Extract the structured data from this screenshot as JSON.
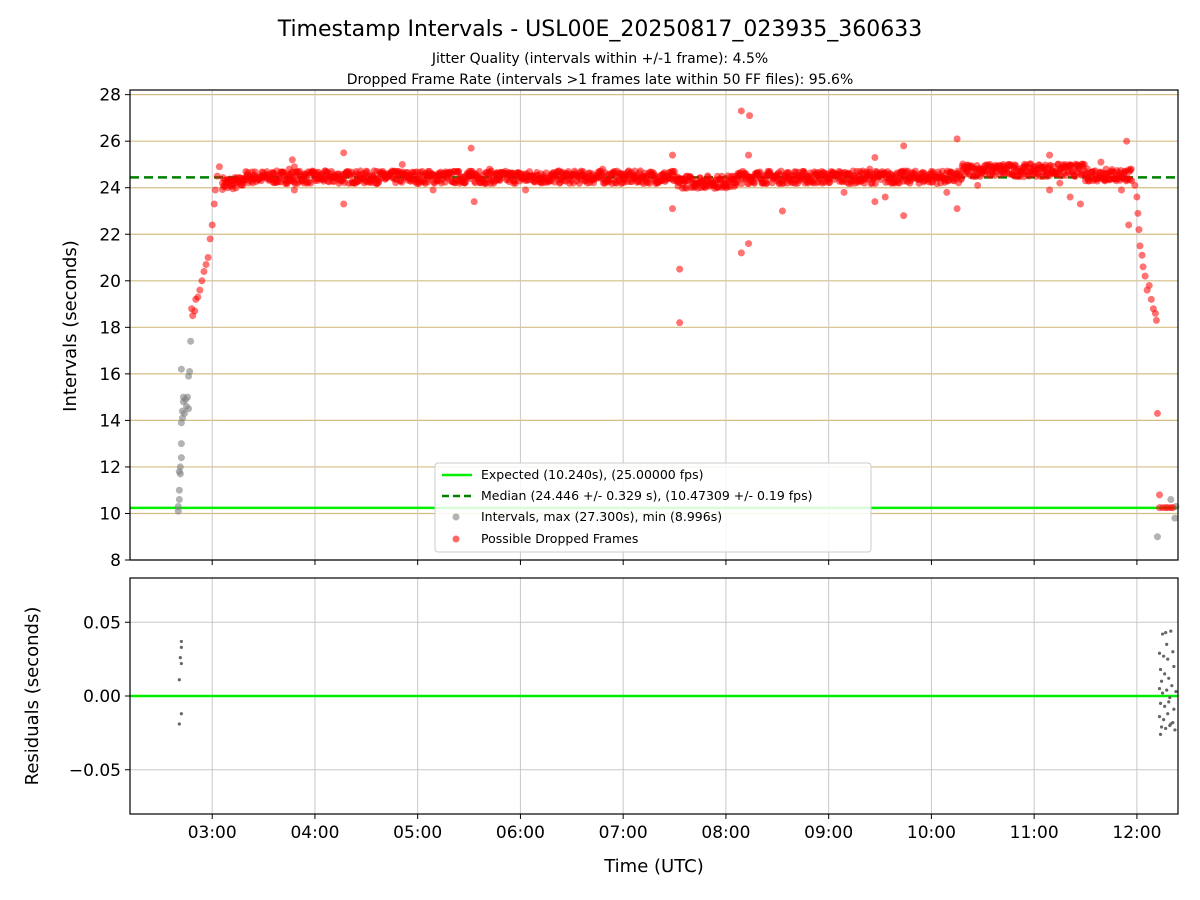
{
  "title": "Timestamp Intervals - USL00E_20250817_023935_360633",
  "subtitle1": "Jitter Quality (intervals within +/-1 frame): 4.5%",
  "subtitle2": "Dropped Frame Rate (intervals >1 frames late within 50 FF files): 95.6%",
  "colors": {
    "expected": "#00ee00",
    "median": "#008000",
    "intervals": "#808080",
    "dropped": "#ff0000",
    "hgrid_top": "#d4bd84",
    "grid": "#c8c8c8"
  },
  "chart_data": [
    {
      "type": "scatter",
      "ylabel": "Intervals (seconds)",
      "ylim": [
        8,
        28.2
      ],
      "yticks": [
        "8",
        "10",
        "12",
        "14",
        "16",
        "18",
        "20",
        "22",
        "24",
        "26",
        "28"
      ],
      "xlim_hours": [
        2.2,
        12.4
      ],
      "expected_value": 10.24,
      "median_value": 24.446,
      "grid": true,
      "legend_position": "lower-center",
      "legend": [
        "Expected (10.240s), (25.00000 fps)",
        "Median (24.446 +/- 0.329 s), (10.47309 +/- 0.19 fps)",
        "Intervals, max (27.300s), min (8.996s)",
        "Possible Dropped Frames"
      ],
      "series": [
        {
          "name": "Intervals, max (27.300s), min (8.996s)",
          "points": [
            [
              2.67,
              10.1
            ],
            [
              2.67,
              10.3
            ],
            [
              2.68,
              10.6
            ],
            [
              2.68,
              11.0
            ],
            [
              2.69,
              11.7
            ],
            [
              2.69,
              12.0
            ],
            [
              2.7,
              12.4
            ],
            [
              2.7,
              13.0
            ],
            [
              2.7,
              13.9
            ],
            [
              2.71,
              14.1
            ],
            [
              2.71,
              14.4
            ],
            [
              2.72,
              14.8
            ],
            [
              2.72,
              15.0
            ],
            [
              2.73,
              14.3
            ],
            [
              2.74,
              14.9
            ],
            [
              2.75,
              14.6
            ],
            [
              2.76,
              15.0
            ],
            [
              2.77,
              14.5
            ],
            [
              2.77,
              15.9
            ],
            [
              2.78,
              16.1
            ],
            [
              2.79,
              17.4
            ],
            [
              2.7,
              16.2
            ],
            [
              2.68,
              11.8
            ],
            [
              12.2,
              9.0
            ],
            [
              12.33,
              10.6
            ],
            [
              12.37,
              9.8
            ],
            [
              12.38,
              10.3
            ]
          ]
        },
        {
          "name": "Possible Dropped Frames",
          "points": [
            [
              2.8,
              18.8
            ],
            [
              2.81,
              18.5
            ],
            [
              2.83,
              18.7
            ],
            [
              2.84,
              19.2
            ],
            [
              2.86,
              19.3
            ],
            [
              2.88,
              19.6
            ],
            [
              2.9,
              20.0
            ],
            [
              2.92,
              20.4
            ],
            [
              2.94,
              20.7
            ],
            [
              2.96,
              21.0
            ],
            [
              2.98,
              21.8
            ],
            [
              3.0,
              22.4
            ],
            [
              3.02,
              23.3
            ],
            [
              3.03,
              23.9
            ],
            [
              3.05,
              24.5
            ],
            [
              3.07,
              24.9
            ],
            [
              3.1,
              24.2
            ],
            [
              3.15,
              24.0
            ],
            [
              3.2,
              24.1
            ],
            [
              3.3,
              24.3
            ],
            [
              3.4,
              24.5
            ],
            [
              3.5,
              24.5
            ],
            [
              3.6,
              24.6
            ],
            [
              3.7,
              24.5
            ],
            [
              3.75,
              24.8
            ],
            [
              3.8,
              24.9
            ],
            [
              3.78,
              25.2
            ],
            [
              3.8,
              23.9
            ],
            [
              3.9,
              24.4
            ],
            [
              4.0,
              24.6
            ],
            [
              4.1,
              24.4
            ],
            [
              4.2,
              24.5
            ],
            [
              4.28,
              25.5
            ],
            [
              4.28,
              23.3
            ],
            [
              4.4,
              24.6
            ],
            [
              4.5,
              24.5
            ],
            [
              4.6,
              24.7
            ],
            [
              4.7,
              24.6
            ],
            [
              4.8,
              24.7
            ],
            [
              4.85,
              25.0
            ],
            [
              4.9,
              24.5
            ],
            [
              5.0,
              24.4
            ],
            [
              5.1,
              24.7
            ],
            [
              5.15,
              23.9
            ],
            [
              5.2,
              24.6
            ],
            [
              5.3,
              24.5
            ],
            [
              5.4,
              24.7
            ],
            [
              5.5,
              24.7
            ],
            [
              5.52,
              25.7
            ],
            [
              5.55,
              23.4
            ],
            [
              5.6,
              24.7
            ],
            [
              5.7,
              24.8
            ],
            [
              5.8,
              24.6
            ],
            [
              5.9,
              24.5
            ],
            [
              6.0,
              24.6
            ],
            [
              6.05,
              23.9
            ],
            [
              6.1,
              24.5
            ],
            [
              6.2,
              24.6
            ],
            [
              6.3,
              24.3
            ],
            [
              6.4,
              24.4
            ],
            [
              6.5,
              24.3
            ],
            [
              6.6,
              24.5
            ],
            [
              6.7,
              24.6
            ],
            [
              6.8,
              24.8
            ],
            [
              6.9,
              24.6
            ],
            [
              7.0,
              24.4
            ],
            [
              7.1,
              24.5
            ],
            [
              7.2,
              24.5
            ],
            [
              7.3,
              24.4
            ],
            [
              7.48,
              25.4
            ],
            [
              7.48,
              23.1
            ],
            [
              7.55,
              20.5
            ],
            [
              7.55,
              18.2
            ],
            [
              7.6,
              24.3
            ],
            [
              7.7,
              24.1
            ],
            [
              7.8,
              24.3
            ],
            [
              7.9,
              24.2
            ],
            [
              8.0,
              24.4
            ],
            [
              8.1,
              24.5
            ],
            [
              8.15,
              27.3
            ],
            [
              8.23,
              27.1
            ],
            [
              8.22,
              25.4
            ],
            [
              8.22,
              21.6
            ],
            [
              8.15,
              21.2
            ],
            [
              8.3,
              24.6
            ],
            [
              8.4,
              24.5
            ],
            [
              8.5,
              24.3
            ],
            [
              8.55,
              23.0
            ],
            [
              8.6,
              24.4
            ],
            [
              8.7,
              24.4
            ],
            [
              8.8,
              24.2
            ],
            [
              8.9,
              24.5
            ],
            [
              9.0,
              24.4
            ],
            [
              9.1,
              24.7
            ],
            [
              9.15,
              23.8
            ],
            [
              9.2,
              24.6
            ],
            [
              9.3,
              24.5
            ],
            [
              9.4,
              24.8
            ],
            [
              9.45,
              25.3
            ],
            [
              9.45,
              23.4
            ],
            [
              9.55,
              23.6
            ],
            [
              9.6,
              24.6
            ],
            [
              9.7,
              24.4
            ],
            [
              9.73,
              25.8
            ],
            [
              9.73,
              22.8
            ],
            [
              9.8,
              24.5
            ],
            [
              9.9,
              24.6
            ],
            [
              10.0,
              24.7
            ],
            [
              10.1,
              24.5
            ],
            [
              10.15,
              23.8
            ],
            [
              10.25,
              26.1
            ],
            [
              10.25,
              23.1
            ],
            [
              10.35,
              24.7
            ],
            [
              10.45,
              24.1
            ],
            [
              10.5,
              24.8
            ],
            [
              10.6,
              24.9
            ],
            [
              10.7,
              25.0
            ],
            [
              10.8,
              24.9
            ],
            [
              10.9,
              24.9
            ],
            [
              11.0,
              24.8
            ],
            [
              11.1,
              24.8
            ],
            [
              11.15,
              25.4
            ],
            [
              11.15,
              23.9
            ],
            [
              11.25,
              24.2
            ],
            [
              11.35,
              23.6
            ],
            [
              11.45,
              23.3
            ],
            [
              11.5,
              24.3
            ],
            [
              11.6,
              24.5
            ],
            [
              11.65,
              25.1
            ],
            [
              11.7,
              24.8
            ],
            [
              11.8,
              24.3
            ],
            [
              11.85,
              23.9
            ],
            [
              11.9,
              26.0
            ],
            [
              11.92,
              22.4
            ],
            [
              11.95,
              24.3
            ],
            [
              11.98,
              24.1
            ],
            [
              12.0,
              23.6
            ],
            [
              12.01,
              22.9
            ],
            [
              12.02,
              22.2
            ],
            [
              12.03,
              21.5
            ],
            [
              12.05,
              21.1
            ],
            [
              12.06,
              20.6
            ],
            [
              12.08,
              20.2
            ],
            [
              12.1,
              19.6
            ],
            [
              12.12,
              19.8
            ],
            [
              12.14,
              19.2
            ],
            [
              12.16,
              18.8
            ],
            [
              12.18,
              18.6
            ],
            [
              12.19,
              18.3
            ],
            [
              12.2,
              14.3
            ],
            [
              12.22,
              10.8
            ],
            [
              12.22,
              10.25
            ],
            [
              12.25,
              10.25
            ],
            [
              12.28,
              10.25
            ],
            [
              12.3,
              10.25
            ],
            [
              12.33,
              10.25
            ],
            [
              12.35,
              10.25
            ]
          ]
        }
      ]
    },
    {
      "type": "scatter",
      "ylabel": "Residuals (seconds)",
      "xlabel": "Time (UTC)",
      "ylim": [
        -0.08,
        0.08
      ],
      "yticks": [
        "−0.05",
        "0.00",
        "0.05"
      ],
      "xticks": [
        "03:00",
        "04:00",
        "05:00",
        "06:00",
        "07:00",
        "08:00",
        "09:00",
        "10:00",
        "11:00",
        "12:00"
      ],
      "xlim_hours": [
        2.2,
        12.4
      ],
      "grid": true,
      "series": [
        {
          "points": [
            [
              2.7,
              0.037
            ],
            [
              2.7,
              0.033
            ],
            [
              2.69,
              0.026
            ],
            [
              2.7,
              0.022
            ],
            [
              2.68,
              0.011
            ],
            [
              2.7,
              -0.012
            ],
            [
              2.68,
              -0.019
            ],
            [
              12.25,
              0.042
            ],
            [
              12.28,
              0.043
            ],
            [
              12.33,
              0.044
            ],
            [
              12.22,
              0.029
            ],
            [
              12.26,
              0.027
            ],
            [
              12.3,
              0.025
            ],
            [
              12.35,
              0.03
            ],
            [
              12.23,
              0.018
            ],
            [
              12.27,
              0.015
            ],
            [
              12.31,
              0.012
            ],
            [
              12.36,
              0.02
            ],
            [
              12.22,
              0.005
            ],
            [
              12.25,
              0.002
            ],
            [
              12.29,
              0.004
            ],
            [
              12.34,
              0.007
            ],
            [
              12.38,
              0.003
            ],
            [
              12.23,
              -0.005
            ],
            [
              12.27,
              -0.007
            ],
            [
              12.31,
              -0.004
            ],
            [
              12.36,
              -0.009
            ],
            [
              12.22,
              -0.014
            ],
            [
              12.26,
              -0.016
            ],
            [
              12.3,
              -0.012
            ],
            [
              12.35,
              -0.018
            ],
            [
              12.24,
              -0.021
            ],
            [
              12.28,
              -0.022
            ],
            [
              12.32,
              -0.02
            ],
            [
              12.37,
              -0.023
            ],
            [
              12.23,
              -0.026
            ],
            [
              12.33,
              -0.019
            ],
            [
              12.29,
              0.035
            ],
            [
              12.24,
              0.01
            ],
            [
              12.32,
              -0.001
            ]
          ]
        }
      ]
    }
  ]
}
